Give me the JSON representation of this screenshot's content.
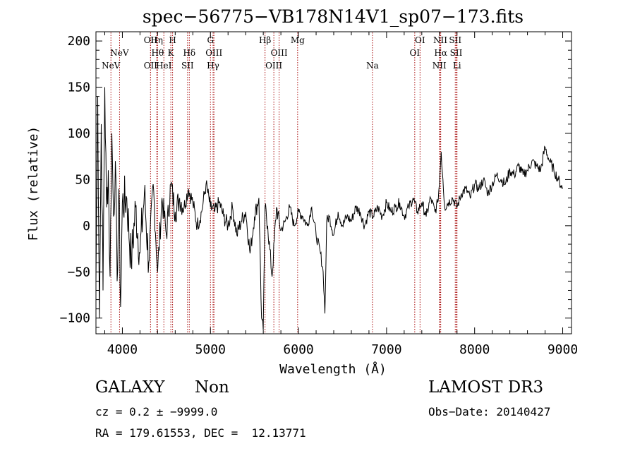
{
  "chart_data": {
    "type": "line",
    "title": "spec−56775−VB178N14V1_sp07−173.fits",
    "xlabel": "Wavelength (Å)",
    "ylabel": "Flux (relative)",
    "xlim": [
      3700,
      9100
    ],
    "ylim": [
      -117,
      210
    ],
    "xticks": [
      4000,
      5000,
      6000,
      7000,
      8000,
      9000
    ],
    "yticks": [
      -100,
      -50,
      0,
      50,
      100,
      150,
      200
    ],
    "xtick_labels": [
      "4000",
      "5000",
      "6000",
      "7000",
      "8000",
      "9000"
    ],
    "ytick_labels": [
      "−100",
      "−50",
      "0",
      "50",
      "100",
      "150",
      "200"
    ],
    "line_color": "#000000",
    "marker_color": "#aa1111",
    "series": [
      {
        "name": "flux",
        "x": [
          3700,
          3720,
          3740,
          3760,
          3780,
          3800,
          3820,
          3840,
          3860,
          3880,
          3900,
          3920,
          3940,
          3960,
          3980,
          4000,
          4050,
          4100,
          4150,
          4200,
          4250,
          4300,
          4350,
          4400,
          4450,
          4500,
          4550,
          4600,
          4650,
          4700,
          4750,
          4800,
          4850,
          4900,
          4950,
          5000,
          5050,
          5100,
          5150,
          5200,
          5250,
          5300,
          5350,
          5400,
          5450,
          5500,
          5550,
          5580,
          5600,
          5620,
          5650,
          5700,
          5750,
          5800,
          5850,
          5900,
          5950,
          6000,
          6050,
          6100,
          6150,
          6200,
          6250,
          6280,
          6300,
          6320,
          6350,
          6400,
          6450,
          6500,
          6550,
          6600,
          6650,
          6700,
          6750,
          6800,
          6850,
          6900,
          6950,
          7000,
          7050,
          7100,
          7150,
          7200,
          7250,
          7300,
          7350,
          7400,
          7450,
          7500,
          7550,
          7580,
          7600,
          7620,
          7640,
          7660,
          7700,
          7750,
          7800,
          7850,
          7900,
          7950,
          8000,
          8050,
          8100,
          8150,
          8200,
          8250,
          8300,
          8350,
          8400,
          8450,
          8500,
          8550,
          8600,
          8650,
          8700,
          8750,
          8800,
          8850,
          8900,
          8950,
          9000
        ],
        "y": [
          -60,
          140,
          -100,
          110,
          -70,
          150,
          20,
          60,
          -55,
          100,
          10,
          70,
          -60,
          40,
          -88,
          25,
          30,
          -40,
          20,
          -30,
          35,
          -40,
          45,
          -50,
          30,
          -10,
          45,
          15,
          30,
          20,
          40,
          25,
          0,
          15,
          45,
          20,
          15,
          25,
          10,
          0,
          20,
          -10,
          5,
          15,
          -30,
          10,
          30,
          -100,
          -113,
          20,
          0,
          -55,
          20,
          -5,
          5,
          20,
          0,
          15,
          10,
          0,
          20,
          -10,
          -30,
          -50,
          -95,
          5,
          10,
          -10,
          15,
          0,
          10,
          5,
          20,
          15,
          0,
          15,
          10,
          20,
          10,
          25,
          15,
          20,
          25,
          10,
          20,
          30,
          15,
          25,
          10,
          30,
          15,
          25,
          45,
          80,
          50,
          20,
          25,
          30,
          20,
          35,
          40,
          30,
          45,
          40,
          50,
          35,
          45,
          55,
          50,
          45,
          60,
          55,
          65,
          55,
          60,
          70,
          65,
          60,
          85,
          70,
          60,
          50,
          40
        ]
      }
    ],
    "lines": [
      {
        "name": "NeV",
        "x": 3870,
        "row": 2
      },
      {
        "name": "NeV",
        "x": 3968,
        "row": 1
      },
      {
        "name": "OII",
        "x": 4320,
        "row": 0
      },
      {
        "name": "Hη",
        "x": 4390,
        "row": 0
      },
      {
        "name": "Hθ",
        "x": 4400,
        "row": 1
      },
      {
        "name": "OII",
        "x": 4320,
        "row": 2
      },
      {
        "name": "HeI",
        "x": 4471,
        "row": 2
      },
      {
        "name": "H",
        "x": 4570,
        "row": 0
      },
      {
        "name": "K",
        "x": 4550,
        "row": 1
      },
      {
        "name": "Hδ",
        "x": 4760,
        "row": 1
      },
      {
        "name": "SII",
        "x": 4740,
        "row": 2
      },
      {
        "name": "G",
        "x": 5000,
        "row": 0
      },
      {
        "name": "OIII",
        "x": 5040,
        "row": 1
      },
      {
        "name": "Hγ",
        "x": 5030,
        "row": 2
      },
      {
        "name": "Hβ",
        "x": 5620,
        "row": 0
      },
      {
        "name": "OIII",
        "x": 5780,
        "row": 1
      },
      {
        "name": "OIII",
        "x": 5720,
        "row": 2
      },
      {
        "name": "Mg",
        "x": 5990,
        "row": 0
      },
      {
        "name": "Na",
        "x": 6840,
        "row": 2
      },
      {
        "name": "OI",
        "x": 7380,
        "row": 0
      },
      {
        "name": "OI",
        "x": 7320,
        "row": 1
      },
      {
        "name": "NII",
        "x": 7610,
        "row": 0
      },
      {
        "name": "Hα",
        "x": 7615,
        "row": 1
      },
      {
        "name": "NII",
        "x": 7600,
        "row": 2
      },
      {
        "name": "SII",
        "x": 7780,
        "row": 0
      },
      {
        "name": "SII",
        "x": 7790,
        "row": 1
      },
      {
        "name": "Li",
        "x": 7800,
        "row": 2
      }
    ]
  },
  "footer": {
    "object_class": "GALAXY",
    "subclass": "Non",
    "survey": "LAMOST DR3",
    "redshift_line": "cz = 0.2 ± −9999.0",
    "obs_date_line": "Obs−Date: 20140427",
    "radec_line": "RA = 179.61553, DEC =  12.13771"
  }
}
